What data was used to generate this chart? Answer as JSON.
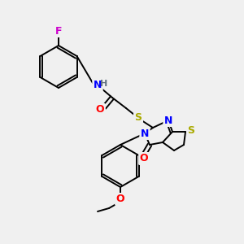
{
  "bg_color": "#f0f0f0",
  "bond_color": "#000000",
  "atom_colors": {
    "F": "#cc00cc",
    "N": "#0000ff",
    "O": "#ff0000",
    "S": "#aaaa00",
    "H": "#607080",
    "C": "#000000"
  },
  "figsize": [
    3.0,
    3.0
  ],
  "dpi": 100
}
